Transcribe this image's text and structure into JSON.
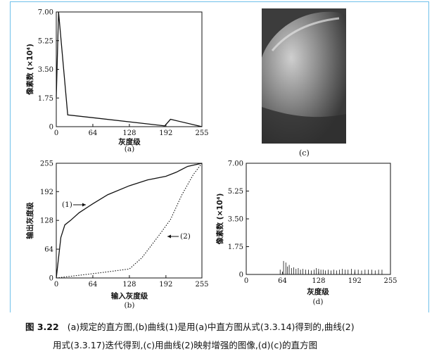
{
  "chart_data": [
    {
      "type": "line",
      "panel_label": "(a)",
      "xlabel": "灰度级",
      "ylabel": "像素数 (×10⁴)",
      "xlim": [
        0,
        255
      ],
      "ylim": [
        0,
        7.0
      ],
      "xticks": [
        "0",
        "64",
        "128",
        "192",
        "255"
      ],
      "yticks": [
        "0",
        "1.75",
        "3.50",
        "5.25",
        "7.00"
      ],
      "series": [
        {
          "x": [
            0,
            4,
            20,
            190,
            200,
            255
          ],
          "y": [
            1.8,
            7.0,
            0.72,
            0.05,
            0.45,
            0.0
          ]
        }
      ]
    },
    {
      "type": "line",
      "panel_label": "(b)",
      "xlabel": "输入灰度级",
      "ylabel": "输出灰度级",
      "xlim": [
        0,
        255
      ],
      "ylim": [
        0,
        255
      ],
      "xticks": [
        "0",
        "64",
        "128",
        "192",
        "255"
      ],
      "yticks": [
        "0",
        "64",
        "128",
        "192",
        "255"
      ],
      "annotations": [
        "(1)",
        "(2)"
      ],
      "series": [
        {
          "x": [
            0,
            8,
            15,
            25,
            40,
            64,
            90,
            128,
            160,
            192,
            210,
            230,
            255
          ],
          "y": [
            0,
            90,
            118,
            128,
            145,
            165,
            185,
            205,
            218,
            226,
            235,
            248,
            255
          ]
        },
        {
          "x": [
            0,
            40,
            80,
            128,
            150,
            180,
            200,
            220,
            240,
            255
          ],
          "y": [
            0,
            6,
            12,
            20,
            45,
            95,
            130,
            185,
            230,
            255
          ]
        }
      ]
    },
    {
      "type": "bar",
      "panel_label": "(d)",
      "xlabel": "灰度级",
      "ylabel": "像素数 (×10⁴)",
      "xlim": [
        0,
        255
      ],
      "ylim": [
        0,
        7.0
      ],
      "xticks": [
        "0",
        "64",
        "128",
        "192",
        "255"
      ],
      "yticks": [
        "0",
        "1.75",
        "3.50",
        "5.25",
        "7.00"
      ],
      "x": [
        60,
        66,
        70,
        73,
        76,
        80,
        84,
        88,
        92,
        96,
        100,
        105,
        110,
        115,
        120,
        124,
        128,
        132,
        136,
        140,
        145,
        150,
        155,
        160,
        165,
        170,
        175,
        180,
        186,
        192,
        198,
        204,
        210,
        216,
        222,
        228,
        234,
        240
      ],
      "values": [
        0.3,
        0.85,
        0.75,
        0.5,
        0.6,
        0.4,
        0.45,
        0.35,
        0.4,
        0.3,
        0.35,
        0.3,
        0.3,
        0.25,
        0.3,
        0.4,
        0.35,
        0.3,
        0.3,
        0.25,
        0.3,
        0.25,
        0.3,
        0.25,
        0.3,
        0.35,
        0.3,
        0.3,
        0.35,
        0.3,
        0.3,
        0.25,
        0.3,
        0.3,
        0.3,
        0.25,
        0.3,
        0.3
      ]
    }
  ],
  "image_panel": {
    "label": "(c)"
  },
  "caption": {
    "figure_no": "图 3.22",
    "line1": "(a)规定的直方图,(b)曲线(1)是用(a)中直方图从式(3.3.14)得到的,曲线(2)",
    "line2": "用式(3.3.17)迭代得到,(c)用曲线(2)映射增强的图像,(d)(c)的直方图"
  }
}
